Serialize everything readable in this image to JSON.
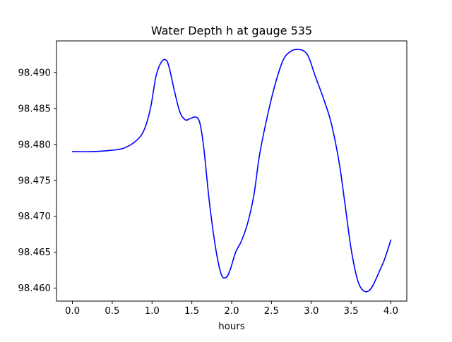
{
  "chart_data": {
    "type": "line",
    "title": "Water Depth h at gauge 535",
    "xlabel": "hours",
    "ylabel": "",
    "xlim": [
      -0.2,
      4.2
    ],
    "ylim": [
      98.4582,
      98.4944
    ],
    "x_ticks": [
      0.0,
      0.5,
      1.0,
      1.5,
      2.0,
      2.5,
      3.0,
      3.5,
      4.0
    ],
    "x_tick_labels": [
      "0.0",
      "0.5",
      "1.0",
      "1.5",
      "2.0",
      "2.5",
      "3.0",
      "3.5",
      "4.0"
    ],
    "y_ticks": [
      98.46,
      98.465,
      98.47,
      98.475,
      98.48,
      98.485,
      98.49
    ],
    "y_tick_labels": [
      "98.460",
      "98.465",
      "98.470",
      "98.475",
      "98.480",
      "98.485",
      "98.490"
    ],
    "grid": false,
    "legend": "none",
    "series": [
      {
        "color": "#0000ff",
        "x": [
          0.0,
          0.25,
          0.5,
          0.65,
          0.8,
          0.9,
          0.98,
          1.05,
          1.12,
          1.18,
          1.22,
          1.28,
          1.35,
          1.42,
          1.48,
          1.55,
          1.6,
          1.65,
          1.72,
          1.8,
          1.87,
          1.93,
          1.98,
          2.05,
          2.12,
          2.2,
          2.28,
          2.35,
          2.45,
          2.55,
          2.65,
          2.75,
          2.85,
          2.93,
          2.98,
          3.05,
          3.15,
          3.25,
          3.35,
          3.42,
          3.5,
          3.58,
          3.65,
          3.72,
          3.78,
          3.85,
          3.92,
          4.0
        ],
        "y": [
          98.479,
          98.479,
          98.4792,
          98.4795,
          98.4805,
          98.482,
          98.485,
          98.4895,
          98.4915,
          98.4917,
          98.4905,
          98.4875,
          98.4845,
          98.4834,
          98.4836,
          98.4838,
          98.483,
          98.4795,
          98.472,
          98.4655,
          98.4619,
          98.4615,
          98.4625,
          98.465,
          98.4665,
          98.469,
          98.473,
          98.4785,
          98.484,
          98.4885,
          98.4918,
          98.493,
          98.4932,
          98.4928,
          98.4918,
          98.4895,
          98.4865,
          98.483,
          98.4775,
          98.472,
          98.4655,
          98.4612,
          98.4597,
          98.4596,
          98.4605,
          98.4622,
          98.464,
          98.4667
        ]
      }
    ]
  }
}
